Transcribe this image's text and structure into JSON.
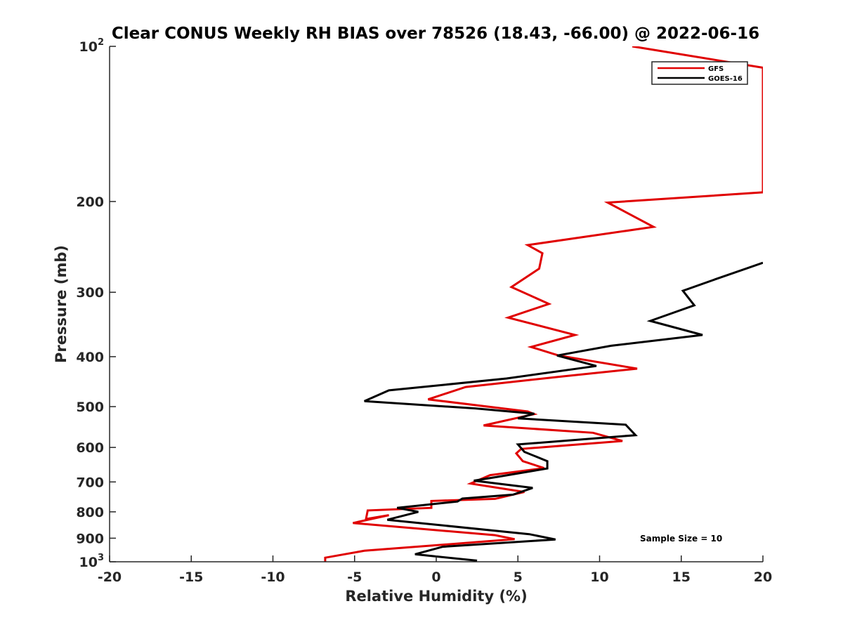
{
  "chart_data": {
    "type": "line",
    "title": "Clear CONUS Weekly RH BIAS over 78526 (18.43, -66.00) @ 2022-06-16",
    "xlabel": "Relative Humidity (%)",
    "ylabel": "Pressure (mb)",
    "xlim": [
      -20,
      20
    ],
    "ylim": [
      100,
      1000
    ],
    "y_scale": "log",
    "y_reversed": true,
    "x_ticks": [
      "-20",
      "-15",
      "-10",
      "-5",
      "0",
      "5",
      "10",
      "15",
      "20"
    ],
    "y_ticks": [
      {
        "value": 100,
        "base": "10",
        "exp": "2"
      },
      {
        "value": 200,
        "base": "200",
        "exp": ""
      },
      {
        "value": 300,
        "base": "300",
        "exp": ""
      },
      {
        "value": 400,
        "base": "400",
        "exp": ""
      },
      {
        "value": 500,
        "base": "500",
        "exp": ""
      },
      {
        "value": 600,
        "base": "600",
        "exp": ""
      },
      {
        "value": 700,
        "base": "700",
        "exp": ""
      },
      {
        "value": 800,
        "base": "800",
        "exp": ""
      },
      {
        "value": 900,
        "base": "900",
        "exp": ""
      },
      {
        "value": 1000,
        "base": "10",
        "exp": "3"
      }
    ],
    "legend_position": "top-right",
    "annotation": "Sample Size = 10",
    "series": [
      {
        "name": "GFS",
        "color": "#e00000",
        "x": [
          12,
          20,
          20,
          10.5,
          13.3,
          5.6,
          6.5,
          6.3,
          4.6,
          6.9,
          4.4,
          8.5,
          5.8,
          7.5,
          12.3,
          7.7,
          1.8,
          -0.5,
          5.6,
          6.0,
          2.9,
          9.6,
          11.4,
          5.2,
          4.9,
          5.3,
          6.6,
          3.3,
          2.1,
          5.4,
          3.6,
          -0.3,
          -0.3,
          -4.2,
          -4.3,
          -2.9,
          -5.1,
          3.6,
          4.8,
          -4.4,
          -6.8,
          -6.8
        ],
        "y": [
          100,
          110,
          192,
          201,
          224,
          243,
          252,
          270,
          293,
          316,
          336,
          363,
          383,
          398,
          422,
          437,
          458,
          484,
          511,
          517,
          544,
          562,
          583,
          604,
          616,
          638,
          658,
          679,
          705,
          732,
          755,
          762,
          786,
          795,
          826,
          812,
          841,
          888,
          904,
          952,
          982,
          1000
        ]
      },
      {
        "name": "GOES-16",
        "color": "#000000",
        "x": [
          20,
          17.1,
          15.1,
          15.8,
          13.1,
          16.3,
          10.7,
          7.4,
          9.8,
          4.3,
          -2.9,
          -4.4,
          2.4,
          6.0,
          5.0,
          11.6,
          12.2,
          5.0,
          5.4,
          6.8,
          6.8,
          3.9,
          2.3,
          5.9,
          4.7,
          1.6,
          1.3,
          -2.4,
          -1.1,
          -3.0,
          5.7,
          7.3,
          0.4,
          -1.3,
          2.5
        ],
        "y": [
          263,
          283,
          298,
          318,
          341,
          363,
          381,
          398,
          417,
          441,
          465,
          488,
          504,
          516,
          527,
          542,
          568,
          592,
          612,
          638,
          659,
          683,
          696,
          719,
          741,
          754,
          764,
          786,
          800,
          829,
          884,
          905,
          935,
          967,
          995
        ]
      }
    ]
  }
}
